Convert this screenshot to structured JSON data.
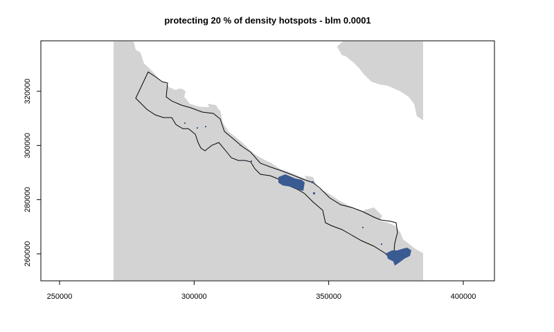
{
  "title": "protecting 20 % of density hotspots - blm 0.0001",
  "x_axis": {
    "ticks": [
      {
        "label": "250000",
        "value": 250000
      },
      {
        "label": "300000",
        "value": 300000
      },
      {
        "label": "350000",
        "value": 350000
      },
      {
        "label": "400000",
        "value": 400000
      }
    ]
  },
  "y_axis": {
    "ticks": [
      {
        "label": "260000",
        "value": 260000
      },
      {
        "label": "280000",
        "value": 280000
      },
      {
        "label": "300000",
        "value": 300000
      },
      {
        "label": "320000",
        "value": 320000
      }
    ]
  },
  "colors": {
    "land": "#d3d3d3",
    "protected": "#3a5a92",
    "outline": "#000000",
    "background": "#ffffff"
  }
}
